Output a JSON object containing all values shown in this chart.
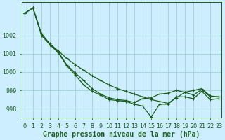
{
  "xlabel": "Graphe pression niveau de la mer (hPa)",
  "x": [
    0,
    1,
    2,
    3,
    4,
    5,
    6,
    7,
    8,
    9,
    10,
    11,
    12,
    13,
    14,
    15,
    16,
    17,
    18,
    19,
    20,
    21,
    22,
    23
  ],
  "y_upper": [
    1003.2,
    1003.5,
    1002.1,
    1001.55,
    1001.15,
    1000.75,
    1000.4,
    1000.1,
    999.8,
    999.55,
    999.3,
    999.1,
    998.95,
    998.8,
    998.65,
    998.5,
    998.4,
    998.3,
    998.6,
    998.9,
    999.0,
    999.1,
    998.7,
    998.65
  ],
  "y_mid": [
    1003.2,
    1003.5,
    1002.1,
    1001.5,
    1001.1,
    1000.4,
    999.95,
    999.55,
    999.1,
    998.8,
    998.6,
    998.5,
    998.45,
    998.35,
    998.55,
    998.6,
    998.8,
    998.85,
    999.0,
    998.9,
    998.75,
    999.05,
    998.65,
    998.65
  ],
  "y_lower": [
    1003.2,
    1003.5,
    1002.0,
    1001.5,
    1001.05,
    1000.35,
    999.85,
    999.3,
    998.95,
    998.75,
    998.5,
    998.45,
    998.4,
    998.25,
    998.15,
    997.55,
    998.25,
    998.25,
    998.65,
    998.65,
    998.55,
    998.95,
    998.5,
    998.55
  ],
  "ylim_min": 997.5,
  "ylim_max": 1003.8,
  "yticks": [
    998,
    999,
    1000,
    1001,
    1002
  ],
  "xlim_min": -0.3,
  "xlim_max": 23.3,
  "bg_color": "#cceeff",
  "line_color": "#1a5c1a",
  "grid_color": "#99cccc",
  "marker": "+",
  "marker_size": 3.5,
  "line_width": 0.9,
  "tick_label_fontsize": 5.8,
  "xlabel_fontsize": 7.0,
  "fig_width": 3.2,
  "fig_height": 2.0,
  "dpi": 100
}
